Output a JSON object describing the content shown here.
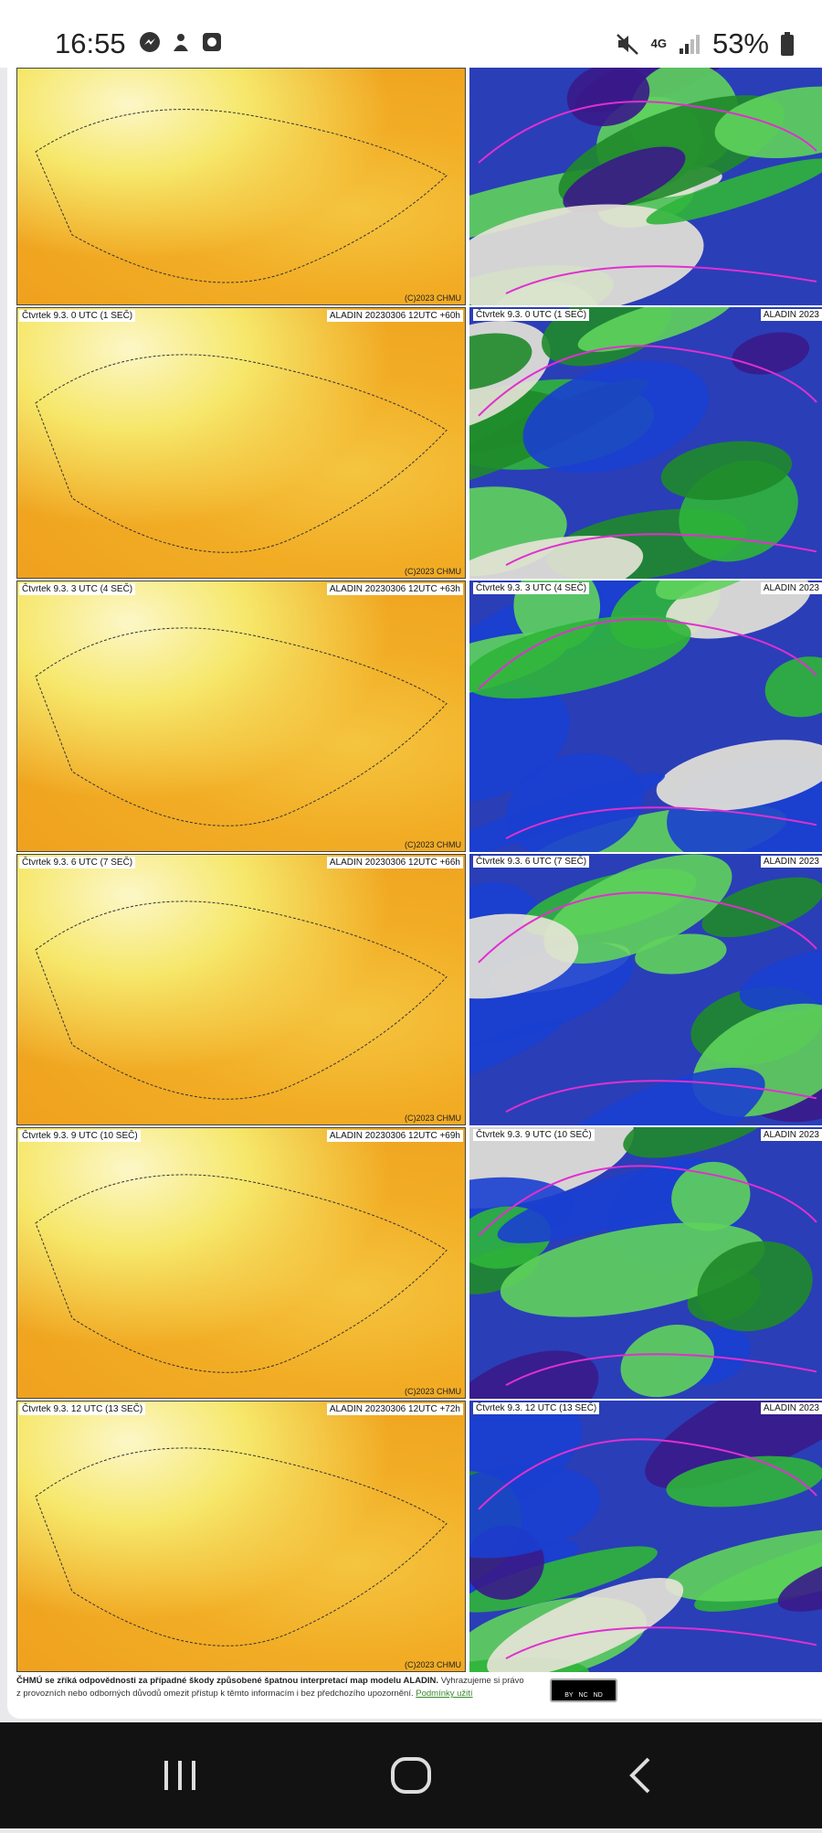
{
  "status_bar": {
    "time": "16:55",
    "network": "4G",
    "battery": "53%"
  },
  "panels": [
    {
      "copyright": "(C)2023 CHMU"
    },
    {
      "left_label": "Čtvrtek 9.3. 0 UTC (1 SEČ)",
      "left_model": "ALADIN 20230306 12UTC +60h",
      "right_label": "Čtvrtek 9.3. 0 UTC (1 SEČ)",
      "right_model": "ALADIN 2023",
      "copyright": "(C)2023 CHMU"
    },
    {
      "left_label": "Čtvrtek 9.3. 3 UTC (4 SEČ)",
      "left_model": "ALADIN 20230306 12UTC +63h",
      "right_label": "Čtvrtek 9.3. 3 UTC (4 SEČ)",
      "right_model": "ALADIN 2023",
      "copyright": "(C)2023 CHMU"
    },
    {
      "left_label": "Čtvrtek 9.3. 6 UTC (7 SEČ)",
      "left_model": "ALADIN 20230306 12UTC +66h",
      "right_label": "Čtvrtek 9.3. 6 UTC (7 SEČ)",
      "right_model": "ALADIN 2023",
      "copyright": "(C)2023 CHMU"
    },
    {
      "left_label": "Čtvrtek 9.3. 9 UTC (10 SEČ)",
      "left_model": "ALADIN 20230306 12UTC +69h",
      "right_label": "Čtvrtek 9.3. 9 UTC (10 SEČ)",
      "right_model": "ALADIN 2023",
      "copyright": "(C)2023 CHMU"
    },
    {
      "left_label": "Čtvrtek 9.3. 12 UTC (13 SEČ)",
      "left_model": "ALADIN 20230306 12UTC +72h",
      "right_label": "Čtvrtek 9.3. 12 UTC (13 SEČ)",
      "right_model": "ALADIN 2023",
      "copyright": "(C)2023 CHMU"
    }
  ],
  "footer": {
    "disclaimer": "ČHMÚ se zříká odpovědnosti za případné škody způsobené špatnou interpretací map modelu ALADIN.",
    "text": "Vyhrazujeme si právo z provozních nebo odborných důvodů omezit přístup k těmto informacím i bez předchozího upozornění.",
    "link": "Podmínky užití",
    "license": [
      "BY",
      "NC",
      "ND"
    ]
  }
}
